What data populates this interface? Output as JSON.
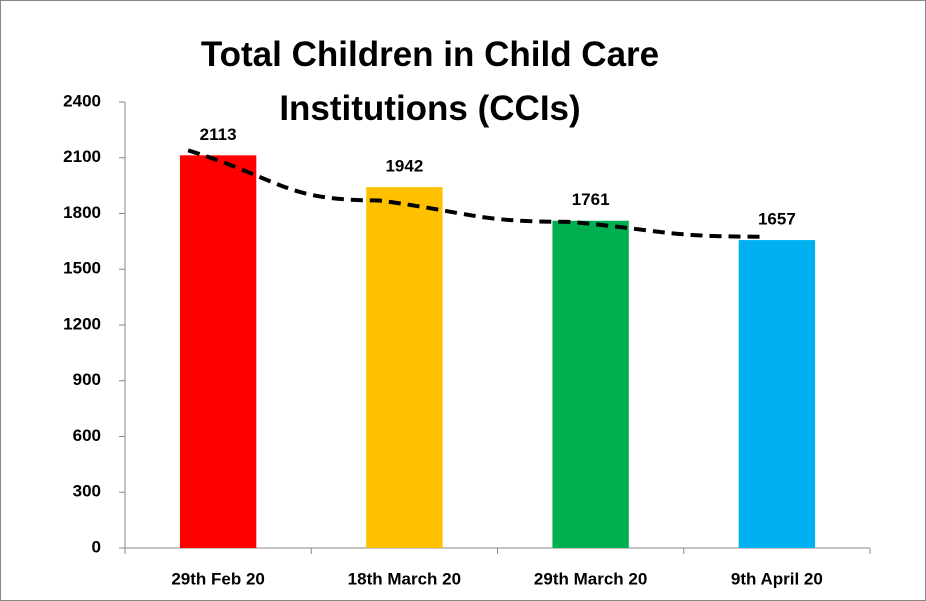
{
  "chart_data": {
    "type": "bar",
    "title": "Total Children in Child Care Institutions (CCIs)",
    "categories": [
      "29th Feb 20",
      "18th March 20",
      "29th March 20",
      "9th April 20"
    ],
    "values": [
      2113,
      1942,
      1761,
      1657
    ],
    "colors": [
      "#ff0000",
      "#ffc000",
      "#00b050",
      "#00b0f0"
    ],
    "trendline": {
      "color": "#000000",
      "dashed": true,
      "values": [
        2140,
        1870,
        1755,
        1675
      ]
    },
    "ylim": [
      0,
      2400
    ],
    "yticks": [
      0,
      300,
      600,
      900,
      1200,
      1500,
      1800,
      2100,
      2400
    ],
    "grid": false
  }
}
